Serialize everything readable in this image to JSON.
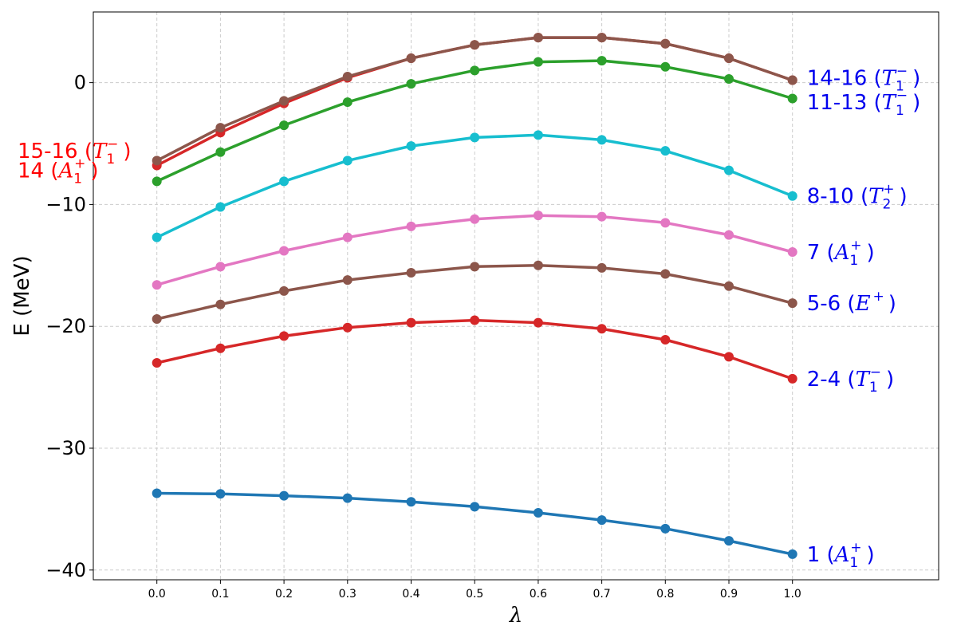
{
  "chart_data": {
    "type": "line",
    "title": "",
    "xlabel": "λ",
    "ylabel": "E (MeV)",
    "x": [
      0.0,
      0.1,
      0.2,
      0.3,
      0.4,
      0.5,
      0.6,
      0.7,
      0.8,
      0.9,
      1.0
    ],
    "x_tick_labels": [
      "0.0",
      "0.1",
      "0.2",
      "0.3",
      "0.4",
      "0.5",
      "0.6",
      "0.7",
      "0.8",
      "0.9",
      "1.0"
    ],
    "xlim": [
      -0.1,
      1.23
    ],
    "ylim": [
      -40.8,
      5.8
    ],
    "y_ticks": [
      0,
      -10,
      -20,
      -30,
      -40
    ],
    "y_tick_labels": [
      "0",
      "−10",
      "−20",
      "−30",
      "−40"
    ],
    "grid": true,
    "series": [
      {
        "color": "#1f77b4",
        "values": [
          -33.7,
          -33.75,
          -33.9,
          -34.1,
          -34.4,
          -34.8,
          -35.3,
          -35.9,
          -36.6,
          -37.6,
          -38.7
        ]
      },
      {
        "color": "#d62728",
        "values": [
          -23.0,
          -21.8,
          -20.8,
          -20.1,
          -19.7,
          -19.5,
          -19.7,
          -20.2,
          -21.1,
          -22.5,
          -24.3
        ]
      },
      {
        "color": "#8c564b",
        "values": [
          -19.4,
          -18.2,
          -17.1,
          -16.2,
          -15.6,
          -15.1,
          -15.0,
          -15.2,
          -15.7,
          -16.7,
          -18.1
        ]
      },
      {
        "color": "#e377c2",
        "values": [
          -16.6,
          -15.1,
          -13.8,
          -12.7,
          -11.8,
          -11.2,
          -10.9,
          -11.0,
          -11.5,
          -12.5,
          -13.9
        ]
      },
      {
        "color": "#17becf",
        "values": [
          -12.7,
          -10.2,
          -8.1,
          -6.4,
          -5.2,
          -4.5,
          -4.3,
          -4.7,
          -5.6,
          -7.2,
          -9.3
        ]
      },
      {
        "color": "#2ca02c",
        "values": [
          -8.1,
          -5.7,
          -3.5,
          -1.6,
          -0.1,
          1.0,
          1.7,
          1.8,
          1.3,
          0.3,
          -1.3
        ]
      },
      {
        "color": "#d62728",
        "values": [
          -6.8,
          -4.1,
          -1.7,
          0.4,
          2.0,
          3.1,
          3.7,
          3.7,
          3.2,
          2.0,
          0.2
        ]
      },
      {
        "color": "#8c564b",
        "values": [
          -6.4,
          -3.7,
          -1.5,
          0.5,
          2.0,
          3.1,
          3.7,
          3.7,
          3.2,
          2.0,
          0.2
        ]
      }
    ],
    "annotations": [
      {
        "id": "a1",
        "prefix": "1 (",
        "sym": "A",
        "sub": "1",
        "sup": "+",
        "suffix": ")",
        "color": "#0000ee",
        "side": "right",
        "y": -38.7
      },
      {
        "id": "a2",
        "prefix": "2-4 (",
        "sym": "T",
        "sub": "1",
        "sup": "−",
        "suffix": ")",
        "color": "#0000ee",
        "side": "right",
        "y": -24.3
      },
      {
        "id": "a3",
        "prefix": "5-6 (",
        "sym": "E",
        "sub": "",
        "sup": "+",
        "suffix": ")",
        "color": "#0000ee",
        "side": "right",
        "y": -18.1
      },
      {
        "id": "a4",
        "prefix": "7 (",
        "sym": "A",
        "sub": "1",
        "sup": "+",
        "suffix": ")",
        "color": "#0000ee",
        "side": "right",
        "y": -13.9
      },
      {
        "id": "a5",
        "prefix": "8-10 (",
        "sym": "T",
        "sub": "2",
        "sup": "+",
        "suffix": ")",
        "color": "#0000ee",
        "side": "right",
        "y": -9.3
      },
      {
        "id": "a6",
        "prefix": "11-13 (",
        "sym": "T",
        "sub": "1",
        "sup": "−",
        "suffix": ")",
        "color": "#0000ee",
        "side": "right",
        "y": -1.6
      },
      {
        "id": "a7",
        "prefix": "14-16 (",
        "sym": "T",
        "sub": "1",
        "sup": "−",
        "suffix": ")",
        "color": "#0000ee",
        "side": "right",
        "y": 0.4
      },
      {
        "id": "a8",
        "prefix": "15-16 (",
        "sym": "T",
        "sub": "1",
        "sup": "−",
        "suffix": ")",
        "color": "#ff0000",
        "side": "left",
        "y": -5.6
      },
      {
        "id": "a9",
        "prefix": "14 (",
        "sym": "A",
        "sub": "1",
        "sup": "+",
        "suffix": ")",
        "color": "#ff0000",
        "side": "left",
        "y": -7.2
      }
    ]
  }
}
